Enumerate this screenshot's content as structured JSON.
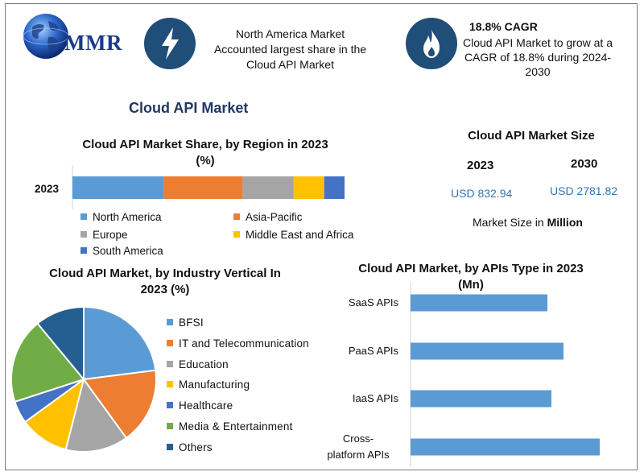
{
  "header": {
    "logo_text": "MMR",
    "fact1": {
      "icon": "lightning-bolt-icon",
      "lines": [
        "North America Market",
        "Accounted largest share in the",
        "Cloud API Market"
      ]
    },
    "fact2": {
      "icon": "flame-icon",
      "title": "18.8% CAGR",
      "lines": [
        "Cloud API Market to grow at a",
        "CAGR of 18.8% during 2024-",
        "2030"
      ]
    }
  },
  "main_title": "Cloud API Market",
  "colors": {
    "blue": "#5b9bd5",
    "orange": "#ed7d31",
    "gray": "#a5a5a5",
    "yellow": "#ffc000",
    "darkblue": "#4472c4",
    "green": "#70ad47",
    "navy": "#255e91",
    "accent": "#1f4e79"
  },
  "market_size": {
    "title": "Cloud API Market Size",
    "year1": "2023",
    "year2": "2030",
    "value1": "USD 832.94",
    "value2": "USD 2781.82",
    "unit_prefix": "Market Size in ",
    "unit_bold": "Million"
  },
  "chart_data": [
    {
      "type": "bar",
      "orientation": "horizontal-stacked",
      "title_lines": [
        "Cloud API Market Share, by Region in 2023",
        "(%)"
      ],
      "categories": [
        "2023"
      ],
      "series": [
        {
          "name": "North America",
          "values": [
            36
          ]
        },
        {
          "name": "Asia-Pacific",
          "values": [
            31
          ]
        },
        {
          "name": "Europe",
          "values": [
            20
          ]
        },
        {
          "name": "Middle East and Africa",
          "values": [
            12
          ]
        },
        {
          "name": "South America",
          "values": [
            8
          ]
        }
      ],
      "legend": "bottom"
    },
    {
      "type": "pie",
      "title_lines": [
        "Cloud API Market, by Industry Vertical In",
        "2023 (%)"
      ],
      "labels": [
        "BFSI",
        "IT and Telecommunication",
        "Education",
        "Manufacturing",
        "Healthcare",
        "Media & Entertainment",
        "Others"
      ],
      "values": [
        23,
        17,
        14,
        11,
        5,
        19,
        11
      ],
      "legend": "right"
    },
    {
      "type": "bar",
      "orientation": "horizontal",
      "title_lines": [
        "Cloud API Market, by APIs Type in 2023",
        "(Mn)"
      ],
      "categories": [
        "SaaS APIs",
        "PaaS APIs",
        "IaaS APIs",
        "Cross-platform APIs"
      ],
      "category_lines": [
        [
          "SaaS APIs"
        ],
        [
          "PaaS APIs"
        ],
        [
          "IaaS APIs"
        ],
        [
          "Cross-",
          "platform APIs"
        ]
      ],
      "values": [
        170,
        190,
        175,
        235
      ],
      "xlim": [
        0,
        250
      ],
      "grid": false
    }
  ]
}
